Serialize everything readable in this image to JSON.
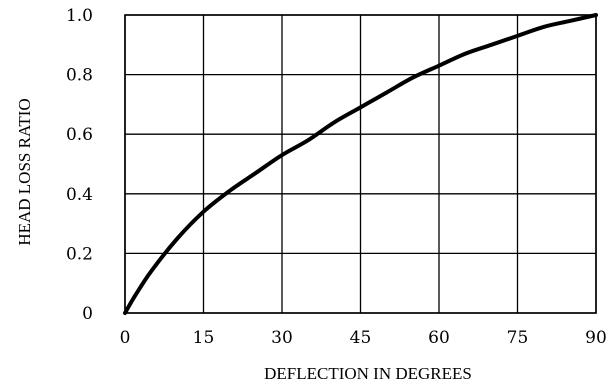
{
  "chart_data": {
    "type": "line",
    "xlabel": "DEFLECTION IN DEGREES",
    "ylabel": "HEAD LOSS RATIO",
    "xlim": [
      0,
      90
    ],
    "ylim": [
      0,
      1.0
    ],
    "x_ticks": [
      0,
      15,
      30,
      45,
      60,
      75,
      90
    ],
    "x_tick_labels": [
      "0",
      "15",
      "30",
      "45",
      "60",
      "75",
      "90"
    ],
    "y_ticks": [
      0,
      0.2,
      0.4,
      0.6,
      0.8,
      1.0
    ],
    "y_tick_labels": [
      "0",
      "0.2",
      "0.4",
      "0.6",
      "0.8",
      "1.0"
    ],
    "grid": true,
    "legend": "none",
    "series": [
      {
        "x": [
          0,
          2,
          5,
          10,
          15,
          20,
          25,
          30,
          35,
          40,
          45,
          50,
          55,
          60,
          65,
          70,
          75,
          80,
          85,
          90
        ],
        "y": [
          0,
          0.06,
          0.14,
          0.25,
          0.34,
          0.41,
          0.47,
          0.53,
          0.58,
          0.64,
          0.69,
          0.74,
          0.79,
          0.83,
          0.87,
          0.9,
          0.93,
          0.96,
          0.98,
          1.0
        ],
        "color": "#000000"
      }
    ]
  }
}
